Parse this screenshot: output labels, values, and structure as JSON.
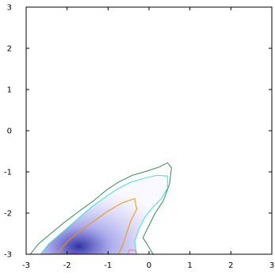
{
  "chart_data": {
    "type": "heatmap",
    "title": "",
    "xlabel": "",
    "ylabel": "",
    "xlim": [
      -3,
      3
    ],
    "ylim": [
      -3,
      3
    ],
    "x_ticks": [
      -3,
      -2,
      -1,
      0,
      1,
      2,
      3
    ],
    "y_ticks": [
      -3,
      -2,
      -1,
      0,
      1,
      2,
      3
    ],
    "x_tick_labels": [
      "-3",
      "-2",
      "-1",
      "0",
      "1",
      "2",
      "3"
    ],
    "y_tick_labels": [
      "-3",
      "-2",
      "-1",
      "0",
      "1",
      "2",
      "3"
    ],
    "grid": false,
    "fill_color_low": "#ffffff",
    "fill_color_high": "#1a1a9a",
    "contours": [
      {
        "color": "#2e8b57",
        "points": [
          [
            -2.9,
            -3.0
          ],
          [
            -2.7,
            -2.75
          ],
          [
            -2.4,
            -2.5
          ],
          [
            -2.1,
            -2.25
          ],
          [
            -1.7,
            -1.95
          ],
          [
            -1.35,
            -1.7
          ],
          [
            -1.05,
            -1.45
          ],
          [
            -0.75,
            -1.25
          ],
          [
            -0.4,
            -1.08
          ],
          [
            -0.05,
            -0.98
          ],
          [
            0.25,
            -0.88
          ],
          [
            0.45,
            -0.78
          ],
          [
            0.55,
            -0.9
          ],
          [
            0.5,
            -1.3
          ],
          [
            0.35,
            -1.7
          ],
          [
            0.15,
            -2.0
          ],
          [
            0.0,
            -2.3
          ],
          [
            -0.15,
            -2.6
          ],
          [
            -0.05,
            -2.75
          ],
          [
            0.1,
            -3.0
          ]
        ]
      },
      {
        "color": "#40e0d0",
        "points": [
          [
            -2.65,
            -3.0
          ],
          [
            -2.45,
            -2.75
          ],
          [
            -2.1,
            -2.45
          ],
          [
            -1.75,
            -2.15
          ],
          [
            -1.4,
            -1.85
          ],
          [
            -1.05,
            -1.6
          ],
          [
            -0.75,
            -1.4
          ],
          [
            -0.45,
            -1.25
          ],
          [
            -0.1,
            -1.15
          ],
          [
            0.2,
            -1.08
          ],
          [
            0.45,
            -1.1
          ],
          [
            0.45,
            -1.4
          ],
          [
            0.3,
            -1.65
          ],
          [
            0.1,
            -1.85
          ],
          [
            -0.1,
            -2.1
          ],
          [
            -0.25,
            -2.4
          ],
          [
            -0.35,
            -2.7
          ],
          [
            -0.3,
            -3.0
          ]
        ]
      },
      {
        "color": "#ff8c00",
        "points": [
          [
            -2.25,
            -3.0
          ],
          [
            -2.0,
            -2.7
          ],
          [
            -1.7,
            -2.45
          ],
          [
            -1.35,
            -2.2
          ],
          [
            -1.0,
            -1.95
          ],
          [
            -0.65,
            -1.75
          ],
          [
            -0.35,
            -1.65
          ],
          [
            -0.3,
            -1.9
          ],
          [
            -0.45,
            -2.2
          ],
          [
            -0.55,
            -2.5
          ],
          [
            -0.65,
            -2.8
          ],
          [
            -0.75,
            -3.0
          ]
        ]
      },
      {
        "color": "#ff69b4",
        "points": [
          [
            -0.52,
            -3.0
          ],
          [
            -0.48,
            -2.9
          ],
          [
            -0.35,
            -2.9
          ],
          [
            -0.3,
            -3.0
          ]
        ]
      },
      {
        "color": "#8a2be2",
        "points": [
          [
            -1.95,
            -3.0
          ],
          [
            -1.85,
            -2.95
          ],
          [
            -1.75,
            -3.0
          ]
        ]
      }
    ]
  }
}
